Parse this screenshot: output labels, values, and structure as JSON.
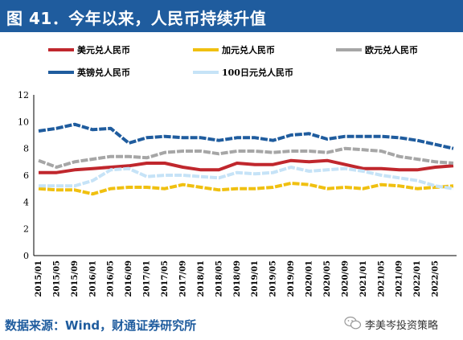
{
  "header": {
    "title": "图 41．今年以来，人民币持续升值"
  },
  "source": "数据来源：Wind，财通证券研究所",
  "watermark": {
    "text": "李美岑投资策略",
    "icon": "wechat-icon"
  },
  "colors": {
    "title_bar": "#1f5c9e",
    "source_text": "#1f5c9e"
  },
  "chart_data": {
    "type": "line",
    "title": "",
    "xlabel": "",
    "ylabel": "",
    "ylim": [
      0,
      12
    ],
    "yticks": [
      0,
      2,
      4,
      6,
      8,
      10,
      12
    ],
    "grid": false,
    "legend_position": "top",
    "x_ticks": [
      "2015/01",
      "2015/05",
      "2015/09",
      "2016/01",
      "2016/05",
      "2016/09",
      "2017/01",
      "2017/05",
      "2017/09",
      "2018/01",
      "2018/05",
      "2018/09",
      "2019/01",
      "2019/05",
      "2019/09",
      "2020/01",
      "2020/05",
      "2020/09",
      "2021/01",
      "2021/05",
      "2021/09",
      "2022/01",
      "2022/05"
    ],
    "x": [
      "2015/01",
      "2015/05",
      "2015/09",
      "2016/01",
      "2016/05",
      "2016/09",
      "2017/01",
      "2017/05",
      "2017/09",
      "2018/01",
      "2018/05",
      "2018/09",
      "2019/01",
      "2019/05",
      "2019/09",
      "2020/01",
      "2020/05",
      "2020/09",
      "2021/01",
      "2021/05",
      "2021/09",
      "2022/01",
      "2022/05",
      "2022/07"
    ],
    "series": [
      {
        "name": "美元兑人民币",
        "color": "#c0272d",
        "dash": false,
        "values": [
          6.2,
          6.2,
          6.4,
          6.5,
          6.6,
          6.7,
          6.9,
          6.9,
          6.6,
          6.4,
          6.4,
          6.9,
          6.8,
          6.8,
          7.1,
          7.0,
          7.1,
          6.8,
          6.5,
          6.5,
          6.4,
          6.4,
          6.6,
          6.7
        ]
      },
      {
        "name": "加元兑人民币",
        "color": "#f0c010",
        "dash": true,
        "values": [
          5.0,
          4.9,
          4.9,
          4.6,
          5.0,
          5.1,
          5.1,
          5.0,
          5.3,
          5.1,
          4.9,
          5.0,
          5.0,
          5.1,
          5.4,
          5.3,
          5.0,
          5.1,
          5.0,
          5.3,
          5.2,
          5.0,
          5.1,
          5.2
        ]
      },
      {
        "name": "欧元兑人民币",
        "color": "#a6a6a6",
        "dash": true,
        "values": [
          7.1,
          6.6,
          7.0,
          7.2,
          7.4,
          7.4,
          7.3,
          7.7,
          7.8,
          7.8,
          7.6,
          7.8,
          7.8,
          7.7,
          7.8,
          7.8,
          7.7,
          8.0,
          7.9,
          7.8,
          7.4,
          7.2,
          7.0,
          6.9
        ]
      },
      {
        "name": "英镑兑人民币",
        "color": "#1f5c9e",
        "dash": true,
        "values": [
          9.3,
          9.5,
          9.8,
          9.4,
          9.5,
          8.4,
          8.8,
          8.9,
          8.8,
          8.8,
          8.6,
          8.8,
          8.8,
          8.6,
          9.0,
          9.1,
          8.7,
          8.9,
          8.9,
          8.9,
          8.8,
          8.6,
          8.3,
          8.0
        ]
      },
      {
        "name": "100日元兑人民币",
        "color": "#c6e3f7",
        "dash": true,
        "values": [
          5.2,
          5.2,
          5.2,
          5.6,
          6.4,
          6.5,
          5.9,
          6.0,
          6.0,
          5.9,
          5.8,
          6.2,
          6.1,
          6.2,
          6.6,
          6.3,
          6.4,
          6.5,
          6.3,
          6.0,
          5.8,
          5.6,
          5.2,
          5.0
        ]
      }
    ]
  }
}
